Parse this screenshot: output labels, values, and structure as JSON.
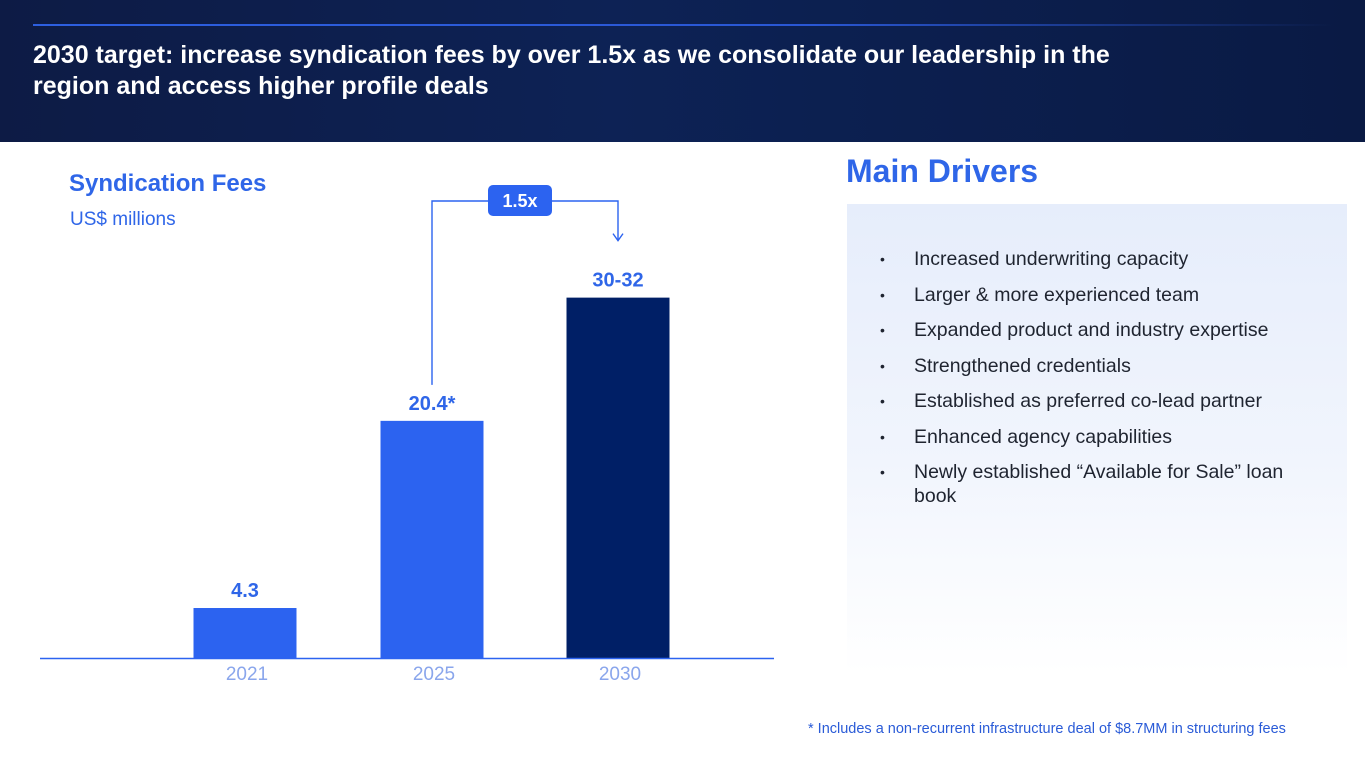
{
  "header": {
    "title": "2030 target: increase syndication fees by over 1.5x as we consolidate our leadership in the region and access higher profile deals"
  },
  "chart_data": {
    "type": "bar",
    "title": "Syndication Fees",
    "subtitle": "US$ millions",
    "categories": [
      "2021",
      "2025",
      "2030"
    ],
    "values": [
      4.3,
      20.4,
      31
    ],
    "value_labels": [
      "4.3",
      "20.4*",
      "30-32"
    ],
    "bar_colors": [
      "#2c63f0",
      "#2c63f0",
      "#001f66"
    ],
    "growth_annotation": {
      "label": "1.5x",
      "from": "2025",
      "to": "2030"
    },
    "ylim": [
      0,
      32
    ],
    "grid": false,
    "legend": "none"
  },
  "drivers": {
    "heading": "Main Drivers",
    "items": [
      "Increased underwriting capacity",
      "Larger & more experienced team",
      "Expanded product and industry expertise",
      "Strengthened credentials",
      "Established as preferred co-lead partner",
      "Enhanced agency capabilities",
      "Newly established “Available for Sale” loan book"
    ]
  },
  "footnote": "* Includes a non-recurrent infrastructure deal of $8.7MM in structuring fees",
  "colors": {
    "accent": "#2f66e8",
    "header_bg": "#0d1b45",
    "dark_bar": "#001f66",
    "bar": "#2c63f0"
  }
}
